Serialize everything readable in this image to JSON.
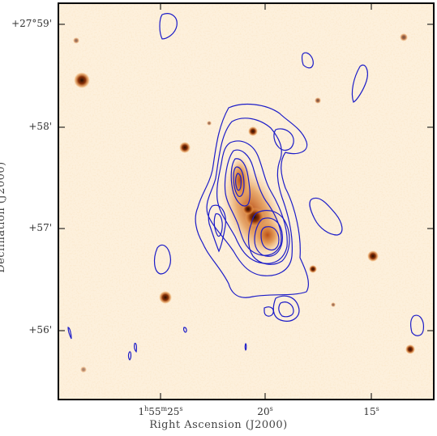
{
  "figure": {
    "xlabel": "Right Ascension (J2000)",
    "ylabel": "Declination (J2000)",
    "y_ticks": [
      "+27°59'",
      "+58'",
      "+57'",
      "+56'"
    ],
    "x_ticks": [
      {
        "h": "1",
        "hs": "h",
        "m": "55",
        "ms": "m",
        "s": "25",
        "ss": "s"
      },
      {
        "v": "20",
        "vs": "s"
      },
      {
        "v": "15",
        "vs": "s"
      }
    ],
    "colors": {
      "background": "#fff6e6",
      "noise": "#f7d7a6",
      "source": "#c8581a",
      "star_core": "#3a1503",
      "contour": "#1c1cc8",
      "frame": "#000000"
    }
  }
}
